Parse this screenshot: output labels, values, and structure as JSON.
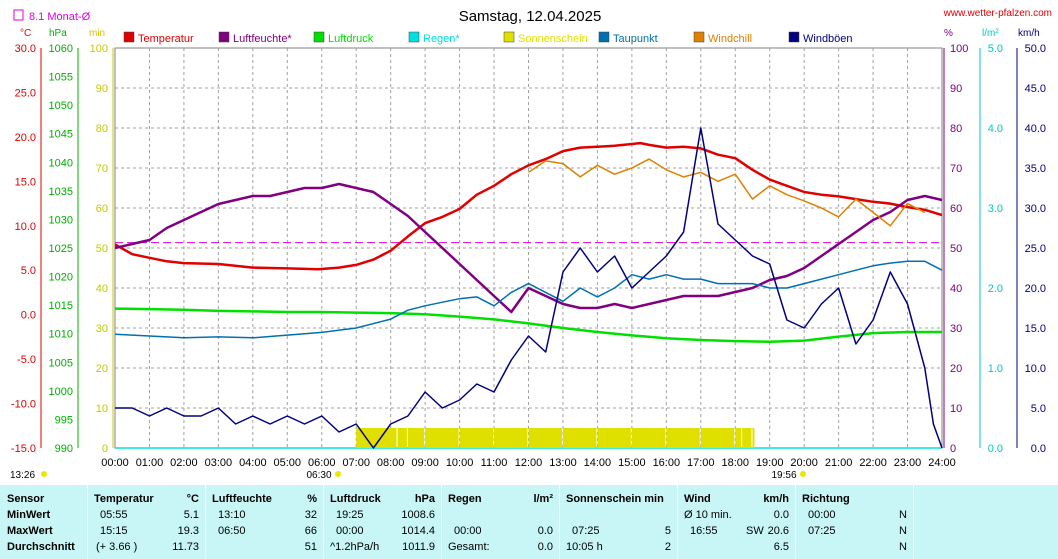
{
  "header": {
    "title": "Samstag, 12.04.2025",
    "website": "www.wetter-pfalzen.com",
    "monthly_avg_label": "8.1 Monat-Ø"
  },
  "axes": {
    "left_units": [
      "°C",
      "hPa",
      "min"
    ],
    "right_units": [
      "%",
      "l/m²",
      "km/h"
    ],
    "temp_ticks": [
      "30.0",
      "25.0",
      "20.0",
      "15.0",
      "10.0",
      "5.0",
      "0.0",
      "-5.0",
      "-10.0",
      "-15.0"
    ],
    "hpa_ticks": [
      "1060",
      "1055",
      "1050",
      "1045",
      "1040",
      "1035",
      "1030",
      "1025",
      "1020",
      "1015",
      "1010",
      "1005",
      "1000",
      "995",
      "990"
    ],
    "min_ticks": [
      "100",
      "90",
      "80",
      "70",
      "60",
      "50",
      "40",
      "30",
      "20",
      "10",
      "0"
    ],
    "pct_ticks": [
      "100",
      "90",
      "80",
      "70",
      "60",
      "50",
      "40",
      "30",
      "20",
      "10",
      "0"
    ],
    "rain_ticks": [
      "5.0",
      "4.0",
      "3.0",
      "2.0",
      "1.0",
      "0.0"
    ],
    "wind_ticks": [
      "50.0",
      "45.0",
      "40.0",
      "35.0",
      "30.0",
      "25.0",
      "20.0",
      "15.0",
      "10.0",
      "5.0",
      "0.0"
    ],
    "x_ticks": [
      "00:00",
      "01:00",
      "02:00",
      "03:00",
      "04:00",
      "05:00",
      "06:00",
      "07:00",
      "08:00",
      "09:00",
      "10:00",
      "11:00",
      "12:00",
      "13:00",
      "14:00",
      "15:00",
      "16:00",
      "17:00",
      "18:00",
      "19:00",
      "20:00",
      "21:00",
      "22:00",
      "23:00",
      "24:00"
    ],
    "sunrise": "06:30",
    "sunset": "19:56",
    "time_left": "13:26"
  },
  "chart_data": {
    "type": "line",
    "title": "Samstag, 12.04.2025",
    "x_unit": "hour",
    "xlim": [
      0,
      24
    ],
    "legend": [
      {
        "name": "Temperatur",
        "color": "#e00000"
      },
      {
        "name": "Luftfeuchte*",
        "color": "#800080"
      },
      {
        "name": "Luftdruck",
        "color": "#00e000"
      },
      {
        "name": "Regen*",
        "color": "#00e0e0"
      },
      {
        "name": "Sonnenschein",
        "color": "#e0e000"
      },
      {
        "name": "Taupunkt",
        "color": "#0070b0"
      },
      {
        "name": "Windchill",
        "color": "#e08000"
      },
      {
        "name": "Windböen",
        "color": "#000080"
      }
    ],
    "monthly_avg_temp": 8.1,
    "series": [
      {
        "name": "Temperatur",
        "unit": "°C",
        "ylim": [
          -15,
          30
        ],
        "x": [
          0,
          0.5,
          1,
          1.5,
          2,
          3,
          4,
          5,
          5.9,
          6.5,
          7,
          7.5,
          8,
          8.5,
          9,
          9.5,
          10,
          10.5,
          11,
          11.5,
          12,
          12.5,
          13,
          13.5,
          14,
          14.5,
          15,
          15.25,
          15.5,
          16,
          16.5,
          17,
          17.5,
          18,
          18.5,
          19,
          19.5,
          20,
          20.5,
          21,
          21.5,
          22,
          22.5,
          23,
          23.5,
          24
        ],
        "values": [
          7.9,
          6.8,
          6.4,
          6.0,
          5.8,
          5.7,
          5.3,
          5.2,
          5.1,
          5.3,
          5.6,
          6.2,
          7.2,
          8.8,
          10.3,
          11.0,
          11.9,
          13.5,
          14.5,
          15.8,
          16.8,
          17.5,
          18.4,
          18.8,
          18.9,
          19.0,
          19.2,
          19.3,
          19.1,
          18.8,
          18.9,
          18.7,
          18.0,
          17.6,
          16.3,
          15.2,
          14.5,
          13.8,
          13.5,
          13.3,
          13.0,
          12.7,
          12.5,
          12.1,
          11.8,
          11.2
        ]
      },
      {
        "name": "Luftfeuchte*",
        "unit": "%",
        "ylim": [
          0,
          100
        ],
        "x": [
          0,
          0.5,
          1,
          1.5,
          2,
          2.5,
          3,
          3.5,
          4,
          4.5,
          5,
          5.5,
          6,
          6.5,
          7,
          7.5,
          8,
          8.5,
          9,
          9.5,
          10,
          10.5,
          11,
          11.5,
          12,
          12.5,
          13,
          13.5,
          14,
          14.5,
          15,
          15.5,
          16,
          16.5,
          17,
          17.5,
          18,
          18.5,
          19,
          19.5,
          20,
          20.5,
          21,
          21.5,
          22,
          22.5,
          23,
          23.5,
          24
        ],
        "values": [
          50,
          51,
          52,
          55,
          57,
          59,
          61,
          62,
          63,
          63,
          64,
          65,
          65,
          66,
          65,
          64,
          61,
          58,
          54,
          50,
          46,
          42,
          38,
          34,
          40,
          38,
          36,
          35,
          35,
          36,
          35,
          36,
          37,
          38,
          38,
          38,
          39,
          40,
          42,
          43,
          45,
          48,
          51,
          54,
          57,
          59,
          62,
          63,
          62
        ]
      },
      {
        "name": "Luftdruck",
        "unit": "hPa",
        "ylim": [
          990,
          1060
        ],
        "x": [
          0,
          1,
          2,
          3,
          4,
          5,
          6,
          7,
          8,
          9,
          10,
          11,
          12,
          13,
          14,
          15,
          16,
          17,
          18,
          19,
          20,
          21,
          22,
          23,
          24
        ],
        "values": [
          1014.4,
          1014.3,
          1014.2,
          1014.0,
          1013.9,
          1013.8,
          1013.8,
          1013.7,
          1013.6,
          1013.4,
          1013.0,
          1012.5,
          1011.8,
          1011.0,
          1010.3,
          1009.7,
          1009.2,
          1008.9,
          1008.7,
          1008.6,
          1008.8,
          1009.5,
          1010.1,
          1010.3,
          1010.3
        ]
      },
      {
        "name": "Regen*",
        "unit": "l/m²",
        "ylim": [
          0,
          5
        ],
        "x": [
          0,
          24
        ],
        "values": [
          0.0,
          0.0
        ]
      },
      {
        "name": "Sonnenschein",
        "unit": "min",
        "ylim": [
          0,
          100
        ],
        "x": [
          7.0,
          8.2,
          8.5,
          9,
          10,
          11,
          12,
          13,
          14,
          15,
          16,
          17,
          18,
          18.2,
          18.5
        ],
        "values": [
          5,
          5,
          5,
          5,
          5,
          5,
          5,
          5,
          5,
          5,
          5,
          5,
          5,
          5,
          5
        ]
      },
      {
        "name": "Taupunkt",
        "unit": "°C",
        "ylim": [
          -15,
          30
        ],
        "x": [
          0,
          1,
          2,
          3,
          4,
          5,
          6,
          7,
          8,
          8.5,
          9,
          9.5,
          10,
          10.5,
          11,
          11.5,
          12,
          12.5,
          13,
          13.5,
          14,
          14.5,
          15,
          15.5,
          16,
          16.5,
          17,
          17.5,
          18,
          18.5,
          19,
          19.5,
          20,
          20.5,
          21,
          21.5,
          22,
          22.5,
          23,
          23.5,
          24
        ],
        "values": [
          -2.2,
          -2.4,
          -2.6,
          -2.5,
          -2.6,
          -2.3,
          -2.0,
          -1.5,
          -0.5,
          0.5,
          1.0,
          1.4,
          1.8,
          2.0,
          1.0,
          2.5,
          3.5,
          2.5,
          1.5,
          3.0,
          2.0,
          3.0,
          4.5,
          4.0,
          4.5,
          4.0,
          4.0,
          3.5,
          3.5,
          3.5,
          3.0,
          3.0,
          3.5,
          4.0,
          4.5,
          5.0,
          5.5,
          5.8,
          6.0,
          6.0,
          5.0
        ]
      },
      {
        "name": "Windchill",
        "unit": "°C",
        "ylim": [
          -15,
          30
        ],
        "x": [
          12,
          12.5,
          13,
          13.5,
          14,
          14.5,
          15,
          15.5,
          16,
          16.5,
          17,
          17.5,
          18,
          18.5,
          19,
          19.5,
          20,
          20.5,
          21,
          21.5,
          22,
          22.5,
          23,
          23.5
        ],
        "values": [
          16.0,
          17.3,
          17.0,
          15.5,
          16.8,
          15.8,
          16.5,
          17.5,
          16.3,
          15.5,
          16.0,
          15.0,
          15.8,
          13.0,
          14.5,
          13.5,
          12.8,
          12.0,
          11.0,
          13.0,
          11.5,
          10.0,
          12.5,
          11.5
        ]
      },
      {
        "name": "Windböen",
        "unit": "km/h",
        "ylim": [
          0,
          50
        ],
        "x": [
          0,
          0.5,
          1,
          1.5,
          2,
          2.5,
          3,
          3.5,
          4,
          4.5,
          5,
          5.5,
          6,
          6.5,
          7,
          7.5,
          8,
          8.5,
          9,
          9.5,
          10,
          10.5,
          11,
          11.5,
          12,
          12.5,
          13,
          13.5,
          14,
          14.5,
          15,
          15.5,
          16,
          16.5,
          17,
          17.5,
          18,
          18.5,
          19,
          19.5,
          20,
          20.5,
          21,
          21.5,
          22,
          22.5,
          23,
          23.5,
          23.75,
          24
        ],
        "values": [
          5,
          5,
          4,
          5,
          4,
          4,
          5,
          3,
          4,
          3,
          4,
          3,
          4,
          2,
          3,
          0,
          3,
          4,
          7,
          5,
          6,
          8,
          7,
          11,
          14,
          12,
          22,
          25,
          22,
          24,
          20,
          22,
          24,
          27,
          40,
          28,
          26,
          24,
          23,
          16,
          15,
          18,
          20,
          13,
          16,
          22,
          18,
          10,
          3,
          0
        ]
      }
    ]
  },
  "stats": {
    "headers": {
      "sensor": "Sensor",
      "temp": "Temperatur",
      "temp_unit": "°C",
      "hum": "Luftfeuchte",
      "hum_unit": "%",
      "press": "Luftdruck",
      "press_unit": "hPa",
      "rain": "Regen",
      "rain_unit": "l/m²",
      "sun": "Sonnenschein min",
      "wind": "Wind",
      "wind_unit": "km/h",
      "dir": "Richtung"
    },
    "rows": [
      {
        "label": "MinWert",
        "temp_time": "05:55",
        "temp_val": "5.1",
        "hum_time": "13:10",
        "hum_val": "32",
        "press_time": "19:25",
        "press_val": "1008.6",
        "rain_time": "",
        "rain_val": "",
        "sun_time": "",
        "sun_val": "",
        "wind_time": "Ø 10 min.",
        "wind_dir": "",
        "wind_val": "0.0",
        "dir_time": "00:00",
        "dir_val": "N"
      },
      {
        "label": "MaxWert",
        "temp_time": "15:15",
        "temp_val": "19.3",
        "hum_time": "06:50",
        "hum_val": "66",
        "press_time": "00:00",
        "press_val": "1014.4",
        "rain_time": "00:00",
        "rain_val": "0.0",
        "sun_time": "07:25",
        "sun_val": "5",
        "wind_time": "16:55",
        "wind_dir": "SW",
        "wind_val": "20.6",
        "dir_time": "07:25",
        "dir_val": "N"
      },
      {
        "label": "Durchschnitt",
        "temp_time": "(+ 3.66 )",
        "temp_val": "11.73",
        "hum_time": "",
        "hum_val": "51",
        "press_time": "^1.2hPa/h",
        "press_val": "1011.9",
        "rain_time": "Gesamt:",
        "rain_val": "0.0",
        "sun_time": "10:05 h",
        "sun_val": "2",
        "wind_time": "",
        "wind_dir": "",
        "wind_val": "6.5",
        "dir_time": "",
        "dir_val": "N"
      }
    ]
  }
}
